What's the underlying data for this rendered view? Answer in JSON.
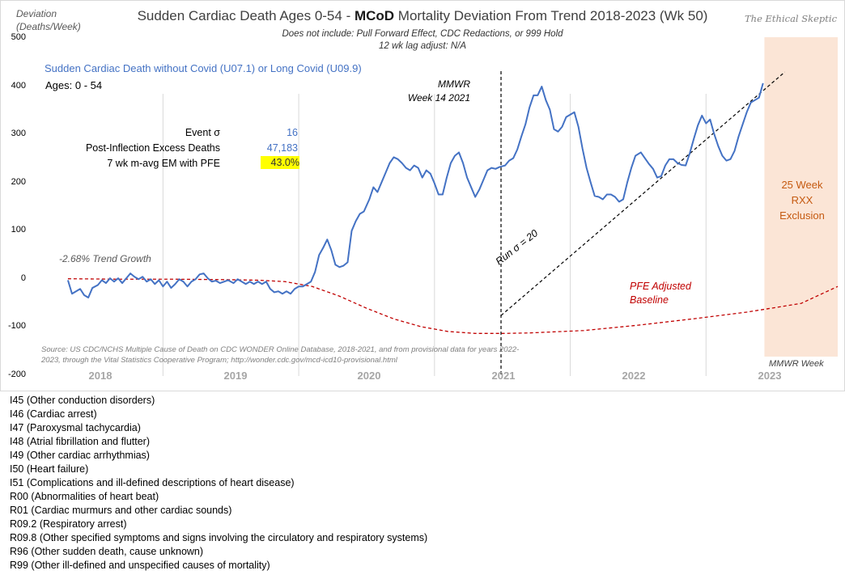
{
  "chart_data": {
    "type": "line",
    "title_parts": {
      "pre": "Sudden Cardiac Death Ages 0-54 - ",
      "bold": "MCoD",
      "post": " Mortality Deviation From Trend  2018-2023 (Wk 50)"
    },
    "subtitle_1": "Does not include: Pull Forward Effect,  CDC Redactions, or 999 Hold",
    "subtitle_2": "12 wk lag adjust: N/A",
    "ylabel_line1": "Deviation",
    "ylabel_line2": "(Deaths/Week)",
    "brand": "The Ethical Skeptic",
    "legend_series": "Sudden Cardiac Death without Covid (U07.1) or Long Covid (U09.9)",
    "ages_label": "Ages: 0 - 54",
    "ylim": [
      -200,
      500
    ],
    "yticks": [
      "500",
      "400",
      "300",
      "200",
      "100",
      "0",
      "-100",
      "-200"
    ],
    "xticks": [
      "2018",
      "2019",
      "2020",
      "2021",
      "2022",
      "2023"
    ],
    "x_unit": "year",
    "series": [
      {
        "name": "Sudden Cardiac Death without Covid (U07.1) or Long Covid (U09.9)",
        "color": "#4472c4",
        "points": [
          [
            2017.8,
            -2
          ],
          [
            2017.83,
            -30
          ],
          [
            2017.86,
            -25
          ],
          [
            2017.89,
            -20
          ],
          [
            2017.92,
            -33
          ],
          [
            2017.95,
            -38
          ],
          [
            2017.98,
            -18
          ],
          [
            2018.02,
            -12
          ],
          [
            2018.05,
            -2
          ],
          [
            2018.08,
            -8
          ],
          [
            2018.11,
            2
          ],
          [
            2018.14,
            -5
          ],
          [
            2018.17,
            2
          ],
          [
            2018.2,
            -8
          ],
          [
            2018.23,
            2
          ],
          [
            2018.26,
            12
          ],
          [
            2018.29,
            5
          ],
          [
            2018.32,
            0
          ],
          [
            2018.35,
            5
          ],
          [
            2018.38,
            -5
          ],
          [
            2018.41,
            0
          ],
          [
            2018.44,
            -10
          ],
          [
            2018.47,
            -2
          ],
          [
            2018.5,
            -15
          ],
          [
            2018.53,
            -5
          ],
          [
            2018.56,
            -18
          ],
          [
            2018.59,
            -10
          ],
          [
            2018.62,
            0
          ],
          [
            2018.65,
            -5
          ],
          [
            2018.68,
            -15
          ],
          [
            2018.71,
            -5
          ],
          [
            2018.74,
            0
          ],
          [
            2018.77,
            10
          ],
          [
            2018.8,
            12
          ],
          [
            2018.83,
            2
          ],
          [
            2018.86,
            -5
          ],
          [
            2018.89,
            -3
          ],
          [
            2018.92,
            -8
          ],
          [
            2018.95,
            -5
          ],
          [
            2018.98,
            -2
          ],
          [
            2019.02,
            -8
          ],
          [
            2019.05,
            0
          ],
          [
            2019.08,
            -5
          ],
          [
            2019.11,
            -10
          ],
          [
            2019.14,
            -5
          ],
          [
            2019.17,
            -10
          ],
          [
            2019.2,
            -5
          ],
          [
            2019.23,
            -10
          ],
          [
            2019.26,
            -5
          ],
          [
            2019.29,
            -20
          ],
          [
            2019.32,
            -27
          ],
          [
            2019.35,
            -25
          ],
          [
            2019.38,
            -30
          ],
          [
            2019.41,
            -25
          ],
          [
            2019.44,
            -30
          ],
          [
            2019.47,
            -20
          ],
          [
            2019.5,
            -15
          ],
          [
            2019.53,
            -15
          ],
          [
            2019.56,
            -10
          ],
          [
            2019.59,
            -5
          ],
          [
            2019.62,
            15
          ],
          [
            2019.65,
            50
          ],
          [
            2019.68,
            65
          ],
          [
            2019.71,
            82
          ],
          [
            2019.74,
            60
          ],
          [
            2019.77,
            30
          ],
          [
            2019.8,
            25
          ],
          [
            2019.83,
            28
          ],
          [
            2019.86,
            35
          ],
          [
            2019.89,
            100
          ],
          [
            2019.92,
            120
          ],
          [
            2019.95,
            135
          ],
          [
            2019.98,
            140
          ],
          [
            2020.02,
            165
          ],
          [
            2020.05,
            190
          ],
          [
            2020.08,
            180
          ],
          [
            2020.11,
            200
          ],
          [
            2020.14,
            220
          ],
          [
            2020.17,
            240
          ],
          [
            2020.2,
            252
          ],
          [
            2020.23,
            248
          ],
          [
            2020.26,
            240
          ],
          [
            2020.29,
            230
          ],
          [
            2020.32,
            225
          ],
          [
            2020.35,
            235
          ],
          [
            2020.38,
            230
          ],
          [
            2020.41,
            210
          ],
          [
            2020.44,
            225
          ],
          [
            2020.47,
            218
          ],
          [
            2020.5,
            198
          ],
          [
            2020.53,
            175
          ],
          [
            2020.56,
            175
          ],
          [
            2020.59,
            210
          ],
          [
            2020.62,
            240
          ],
          [
            2020.65,
            255
          ],
          [
            2020.68,
            262
          ],
          [
            2020.71,
            240
          ],
          [
            2020.74,
            210
          ],
          [
            2020.77,
            190
          ],
          [
            2020.8,
            170
          ],
          [
            2020.83,
            185
          ],
          [
            2020.86,
            205
          ],
          [
            2020.89,
            225
          ],
          [
            2020.92,
            230
          ],
          [
            2020.95,
            228
          ],
          [
            2020.98,
            232
          ],
          [
            2021.02,
            235
          ],
          [
            2021.05,
            245
          ],
          [
            2021.08,
            250
          ],
          [
            2021.11,
            268
          ],
          [
            2021.14,
            295
          ],
          [
            2021.17,
            320
          ],
          [
            2021.2,
            355
          ],
          [
            2021.23,
            380
          ],
          [
            2021.26,
            380
          ],
          [
            2021.29,
            398
          ],
          [
            2021.32,
            370
          ],
          [
            2021.35,
            350
          ],
          [
            2021.38,
            310
          ],
          [
            2021.41,
            305
          ],
          [
            2021.44,
            315
          ],
          [
            2021.47,
            335
          ],
          [
            2021.5,
            340
          ],
          [
            2021.53,
            345
          ],
          [
            2021.56,
            315
          ],
          [
            2021.59,
            270
          ],
          [
            2021.62,
            230
          ],
          [
            2021.65,
            200
          ],
          [
            2021.68,
            172
          ],
          [
            2021.71,
            170
          ],
          [
            2021.74,
            165
          ],
          [
            2021.77,
            175
          ],
          [
            2021.8,
            175
          ],
          [
            2021.83,
            170
          ],
          [
            2021.86,
            160
          ],
          [
            2021.89,
            165
          ],
          [
            2021.92,
            200
          ],
          [
            2021.95,
            230
          ],
          [
            2021.98,
            255
          ],
          [
            2022.02,
            262
          ],
          [
            2022.05,
            250
          ],
          [
            2022.08,
            238
          ],
          [
            2022.11,
            228
          ],
          [
            2022.14,
            210
          ],
          [
            2022.17,
            213
          ],
          [
            2022.2,
            235
          ],
          [
            2022.23,
            248
          ],
          [
            2022.26,
            248
          ],
          [
            2022.29,
            240
          ],
          [
            2022.32,
            236
          ],
          [
            2022.35,
            235
          ],
          [
            2022.38,
            260
          ],
          [
            2022.41,
            290
          ],
          [
            2022.44,
            318
          ],
          [
            2022.47,
            338
          ],
          [
            2022.5,
            322
          ],
          [
            2022.53,
            330
          ],
          [
            2022.56,
            300
          ],
          [
            2022.59,
            275
          ],
          [
            2022.62,
            255
          ],
          [
            2022.65,
            245
          ],
          [
            2022.68,
            248
          ],
          [
            2022.71,
            265
          ],
          [
            2022.74,
            295
          ],
          [
            2022.77,
            320
          ],
          [
            2022.8,
            345
          ],
          [
            2022.83,
            365
          ],
          [
            2022.86,
            370
          ],
          [
            2022.89,
            375
          ],
          [
            2022.92,
            405
          ]
        ]
      },
      {
        "name": "PFE Adjusted Baseline",
        "color": "#c00000",
        "style": "dashed",
        "points": [
          [
            2017.8,
            1
          ],
          [
            2018.2,
            0
          ],
          [
            2018.6,
            0
          ],
          [
            2019.0,
            -1
          ],
          [
            2019.2,
            -2
          ],
          [
            2019.4,
            -5
          ],
          [
            2019.6,
            -15
          ],
          [
            2019.8,
            -35
          ],
          [
            2020.0,
            -60
          ],
          [
            2020.2,
            -82
          ],
          [
            2020.4,
            -98
          ],
          [
            2020.6,
            -108
          ],
          [
            2020.8,
            -112
          ],
          [
            2021.0,
            -112
          ],
          [
            2021.2,
            -111
          ],
          [
            2021.6,
            -106
          ],
          [
            2022.0,
            -95
          ],
          [
            2022.4,
            -82
          ],
          [
            2022.8,
            -68
          ],
          [
            2023.2,
            -50
          ],
          [
            2023.47,
            -15
          ]
        ]
      }
    ],
    "trend_line": {
      "label": "Run σ = 20",
      "style": "dashed",
      "color": "#000000",
      "from": [
        2020.99,
        -75
      ],
      "to": [
        2023.08,
        428
      ]
    },
    "vertical_marker": {
      "x": 2020.99,
      "label_line1": "MMWR",
      "label_line2": "Week 14 2021"
    },
    "exclusion_band": {
      "x_from": 2022.93,
      "x_to": 2023.47,
      "color": "#fbe5d6",
      "label_line1": "25 Week",
      "label_line2": "RXX",
      "label_line3": "Exclusion"
    },
    "annotations": {
      "trend_growth": "-2.68% Trend Growth",
      "pfe_line1": "PFE Adjusted",
      "pfe_line2": "Baseline",
      "x_end_label": "MMWR Week",
      "source": "Source: US CDC/NCHS Multiple Cause of Death on CDC WONDER Online Database, 2018-2021, and from provisional data for years 2022-2023, through the Vital Statistics Cooperative Program; http://wonder.cdc.gov/mcd-icd10-provisional.html"
    },
    "stats": [
      {
        "label": "Event σ",
        "value": "16"
      },
      {
        "label": "Post-Inflection Excess Deaths",
        "value": "47,183"
      },
      {
        "label": "7 wk m-avg EM with PFE",
        "value": "43.0%"
      }
    ],
    "grid": true,
    "legend_placement": "top-left"
  },
  "icd_codes": [
    "I45 (Other conduction  disorders)",
    "I46 (Cardiac arrest)",
    "I47 (Paroxysmal tachycardia)",
    "I48 (Atrial fibrillation  and flutter)",
    "I49 (Other cardiac arrhythmias)",
    "I50 (Heart failure)",
    "I51 (Complications  and ill-defined  descriptions of heart disease)",
    "R00 (Abnormalities of heart beat)",
    "R01 (Cardiac murmurs and other cardiac sounds)",
    "R09.2 (Respiratory arrest)",
    "R09.8 (Other specified  symptoms and signs involving  the circulatory and respiratory systems)",
    "R96 (Other sudden death, cause unknown)",
    "R99 (Other ill-defined and unspecified causes of mortality)"
  ]
}
